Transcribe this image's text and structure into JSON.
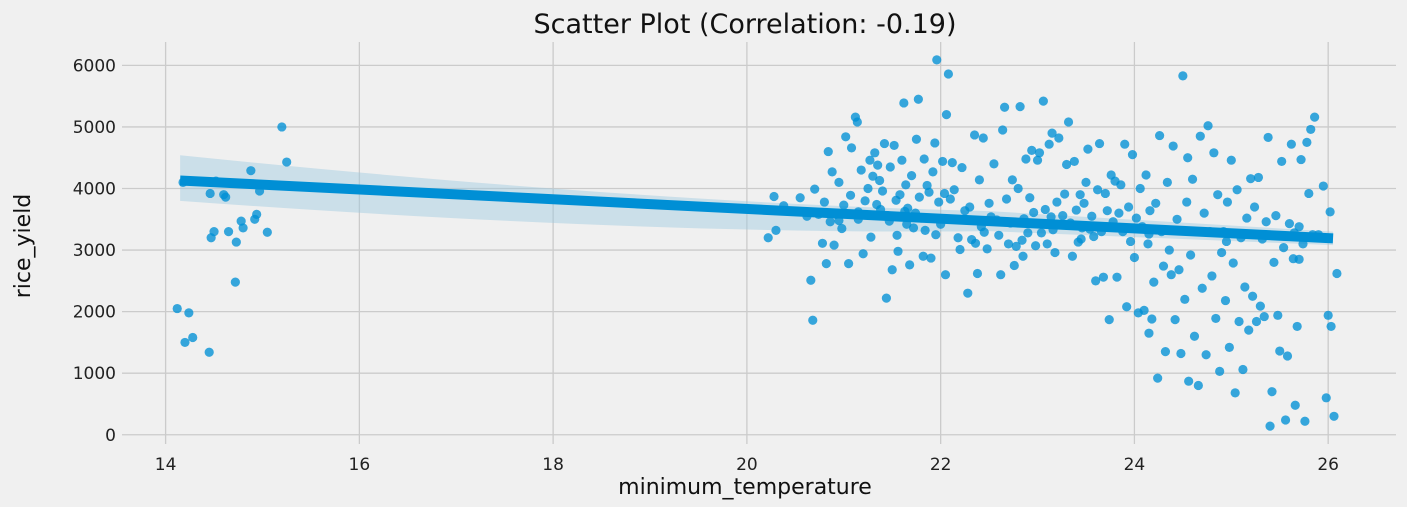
{
  "chart_data": {
    "type": "scatter",
    "title": "Scatter Plot (Correlation: -0.19)",
    "xlabel": "minimum_temperature",
    "ylabel": "rice_yield",
    "xlim": [
      13.55,
      26.7
    ],
    "ylim": [
      -150,
      6380
    ],
    "xticks": [
      14,
      16,
      18,
      20,
      22,
      24,
      26
    ],
    "yticks": [
      0,
      1000,
      2000,
      3000,
      4000,
      5000,
      6000
    ],
    "grid": true,
    "colors": {
      "point": "#008fd5",
      "fit": "#008fd5",
      "band": "#9ecae1",
      "grid": "#cbcbcb",
      "background": "#f0f0f0"
    },
    "regression": {
      "x": [
        14.15,
        26.05
      ],
      "y": [
        4130,
        3190
      ],
      "ci_upper": [
        4540,
        3300
      ],
      "ci_lower": [
        3800,
        3080
      ]
    },
    "points": [
      [
        14.12,
        2050
      ],
      [
        14.18,
        4100
      ],
      [
        14.2,
        1500
      ],
      [
        14.24,
        1980
      ],
      [
        14.28,
        1580
      ],
      [
        14.45,
        1340
      ],
      [
        14.46,
        3920
      ],
      [
        14.47,
        3200
      ],
      [
        14.5,
        3300
      ],
      [
        14.52,
        4120
      ],
      [
        14.6,
        3900
      ],
      [
        14.62,
        3860
      ],
      [
        14.65,
        3300
      ],
      [
        14.72,
        2480
      ],
      [
        14.73,
        3130
      ],
      [
        14.78,
        3470
      ],
      [
        14.8,
        3360
      ],
      [
        14.88,
        4290
      ],
      [
        14.92,
        3500
      ],
      [
        14.94,
        3580
      ],
      [
        14.97,
        3960
      ],
      [
        15.05,
        3290
      ],
      [
        15.2,
        5000
      ],
      [
        15.25,
        4430
      ],
      [
        20.22,
        3200
      ],
      [
        20.28,
        3870
      ],
      [
        20.3,
        3320
      ],
      [
        20.38,
        3720
      ],
      [
        20.55,
        3850
      ],
      [
        20.62,
        3550
      ],
      [
        20.66,
        2510
      ],
      [
        20.68,
        1860
      ],
      [
        20.7,
        3990
      ],
      [
        20.74,
        3580
      ],
      [
        20.78,
        3110
      ],
      [
        20.8,
        3780
      ],
      [
        20.82,
        2780
      ],
      [
        20.84,
        4600
      ],
      [
        20.86,
        3460
      ],
      [
        20.88,
        4270
      ],
      [
        20.9,
        3080
      ],
      [
        20.92,
        3580
      ],
      [
        20.95,
        4100
      ],
      [
        20.98,
        3350
      ],
      [
        21.0,
        3730
      ],
      [
        21.02,
        4840
      ],
      [
        21.05,
        2780
      ],
      [
        21.07,
        3890
      ],
      [
        21.08,
        4660
      ],
      [
        21.12,
        5160
      ],
      [
        21.14,
        5080
      ],
      [
        21.15,
        3500
      ],
      [
        21.18,
        4300
      ],
      [
        21.2,
        2940
      ],
      [
        21.22,
        3800
      ],
      [
        21.25,
        4000
      ],
      [
        21.27,
        4460
      ],
      [
        21.28,
        3210
      ],
      [
        21.3,
        4200
      ],
      [
        21.32,
        4580
      ],
      [
        21.34,
        3740
      ],
      [
        21.35,
        4380
      ],
      [
        21.37,
        4130
      ],
      [
        21.38,
        3660
      ],
      [
        21.4,
        3960
      ],
      [
        21.42,
        4730
      ],
      [
        21.44,
        2220
      ],
      [
        21.45,
        3560
      ],
      [
        21.47,
        3470
      ],
      [
        21.48,
        4350
      ],
      [
        21.5,
        2680
      ],
      [
        21.52,
        4700
      ],
      [
        21.54,
        3810
      ],
      [
        21.55,
        3240
      ],
      [
        21.56,
        2980
      ],
      [
        21.58,
        3900
      ],
      [
        21.6,
        4460
      ],
      [
        21.62,
        5390
      ],
      [
        21.63,
        3630
      ],
      [
        21.64,
        4060
      ],
      [
        21.66,
        3680
      ],
      [
        21.68,
        2760
      ],
      [
        21.7,
        4210
      ],
      [
        21.72,
        3360
      ],
      [
        21.74,
        3600
      ],
      [
        21.75,
        4800
      ],
      [
        21.77,
        5450
      ],
      [
        21.78,
        3860
      ],
      [
        21.8,
        3520
      ],
      [
        21.82,
        2900
      ],
      [
        21.83,
        4480
      ],
      [
        21.84,
        3320
      ],
      [
        21.86,
        4050
      ],
      [
        21.88,
        3940
      ],
      [
        21.9,
        2870
      ],
      [
        21.92,
        4270
      ],
      [
        21.94,
        4740
      ],
      [
        21.95,
        3250
      ],
      [
        21.96,
        6090
      ],
      [
        21.98,
        3780
      ],
      [
        22.0,
        3420
      ],
      [
        22.02,
        4440
      ],
      [
        22.04,
        3920
      ],
      [
        22.05,
        2600
      ],
      [
        22.06,
        5200
      ],
      [
        22.08,
        5860
      ],
      [
        22.1,
        3830
      ],
      [
        22.12,
        4420
      ],
      [
        22.14,
        3980
      ],
      [
        22.16,
        3500
      ],
      [
        22.18,
        3200
      ],
      [
        22.2,
        3010
      ],
      [
        22.22,
        4340
      ],
      [
        22.25,
        3500
      ],
      [
        22.28,
        2300
      ],
      [
        22.3,
        3700
      ],
      [
        22.32,
        3170
      ],
      [
        22.35,
        4870
      ],
      [
        22.36,
        3110
      ],
      [
        22.38,
        2620
      ],
      [
        22.4,
        4140
      ],
      [
        22.42,
        3380
      ],
      [
        22.44,
        4820
      ],
      [
        22.45,
        3290
      ],
      [
        22.48,
        3020
      ],
      [
        22.5,
        3760
      ],
      [
        22.52,
        3540
      ],
      [
        22.55,
        4400
      ],
      [
        22.58,
        3490
      ],
      [
        22.6,
        3240
      ],
      [
        22.62,
        2600
      ],
      [
        22.64,
        4950
      ],
      [
        22.66,
        5320
      ],
      [
        22.68,
        3830
      ],
      [
        22.7,
        3100
      ],
      [
        22.72,
        3440
      ],
      [
        22.74,
        4140
      ],
      [
        22.76,
        2750
      ],
      [
        22.78,
        3060
      ],
      [
        22.8,
        4000
      ],
      [
        22.82,
        5330
      ],
      [
        22.84,
        3160
      ],
      [
        22.86,
        3510
      ],
      [
        22.88,
        4480
      ],
      [
        22.9,
        3280
      ],
      [
        22.92,
        3850
      ],
      [
        22.94,
        4620
      ],
      [
        22.96,
        3610
      ],
      [
        22.98,
        3070
      ],
      [
        23.0,
        4460
      ],
      [
        23.02,
        4580
      ],
      [
        23.04,
        3280
      ],
      [
        23.06,
        5420
      ],
      [
        23.08,
        3660
      ],
      [
        23.1,
        3100
      ],
      [
        23.12,
        4720
      ],
      [
        23.14,
        3540
      ],
      [
        23.15,
        4900
      ],
      [
        23.16,
        3330
      ],
      [
        23.18,
        2960
      ],
      [
        23.2,
        3780
      ],
      [
        23.22,
        4820
      ],
      [
        23.24,
        3420
      ],
      [
        23.26,
        3560
      ],
      [
        23.28,
        3910
      ],
      [
        23.3,
        4390
      ],
      [
        23.32,
        5080
      ],
      [
        23.34,
        3440
      ],
      [
        23.36,
        2900
      ],
      [
        23.38,
        4440
      ],
      [
        23.4,
        3650
      ],
      [
        23.42,
        3130
      ],
      [
        23.44,
        3900
      ],
      [
        23.46,
        3360
      ],
      [
        23.48,
        3760
      ],
      [
        23.5,
        4100
      ],
      [
        23.52,
        4640
      ],
      [
        23.54,
        3340
      ],
      [
        23.56,
        3550
      ],
      [
        23.58,
        3220
      ],
      [
        23.6,
        2500
      ],
      [
        23.62,
        3980
      ],
      [
        23.64,
        4730
      ],
      [
        23.66,
        3300
      ],
      [
        23.68,
        2560
      ],
      [
        23.7,
        3920
      ],
      [
        23.72,
        3640
      ],
      [
        23.74,
        1870
      ],
      [
        23.76,
        4220
      ],
      [
        23.78,
        3460
      ],
      [
        23.8,
        4120
      ],
      [
        23.82,
        2560
      ],
      [
        23.84,
        3600
      ],
      [
        23.86,
        4060
      ],
      [
        23.88,
        3300
      ],
      [
        23.9,
        4720
      ],
      [
        23.92,
        2080
      ],
      [
        23.94,
        3700
      ],
      [
        23.96,
        3140
      ],
      [
        23.98,
        4550
      ],
      [
        24.0,
        2880
      ],
      [
        24.02,
        3520
      ],
      [
        24.04,
        1980
      ],
      [
        24.06,
        4000
      ],
      [
        24.08,
        3380
      ],
      [
        24.1,
        2020
      ],
      [
        24.12,
        4220
      ],
      [
        24.14,
        3100
      ],
      [
        24.15,
        1650
      ],
      [
        24.16,
        3640
      ],
      [
        24.18,
        1880
      ],
      [
        24.2,
        2480
      ],
      [
        24.22,
        3760
      ],
      [
        24.24,
        920
      ],
      [
        24.26,
        4860
      ],
      [
        24.28,
        3300
      ],
      [
        24.3,
        2740
      ],
      [
        24.32,
        1350
      ],
      [
        24.34,
        4100
      ],
      [
        24.36,
        3000
      ],
      [
        24.38,
        2600
      ],
      [
        24.4,
        4690
      ],
      [
        24.42,
        1870
      ],
      [
        24.44,
        3500
      ],
      [
        24.46,
        2680
      ],
      [
        24.48,
        1320
      ],
      [
        24.5,
        5830
      ],
      [
        24.52,
        2200
      ],
      [
        24.54,
        3780
      ],
      [
        24.56,
        870
      ],
      [
        24.58,
        2920
      ],
      [
        24.6,
        4150
      ],
      [
        24.62,
        1600
      ],
      [
        24.64,
        3300
      ],
      [
        24.66,
        800
      ],
      [
        24.68,
        4850
      ],
      [
        24.7,
        2380
      ],
      [
        24.72,
        3600
      ],
      [
        24.74,
        1300
      ],
      [
        24.76,
        5020
      ],
      [
        24.78,
        3300
      ],
      [
        24.8,
        2580
      ],
      [
        24.82,
        4580
      ],
      [
        24.84,
        1890
      ],
      [
        24.86,
        3900
      ],
      [
        24.88,
        1030
      ],
      [
        24.9,
        2960
      ],
      [
        24.92,
        3300
      ],
      [
        24.94,
        2180
      ],
      [
        24.96,
        3780
      ],
      [
        24.98,
        1420
      ],
      [
        25.0,
        4460
      ],
      [
        25.02,
        2790
      ],
      [
        25.04,
        680
      ],
      [
        25.06,
        3980
      ],
      [
        25.08,
        1840
      ],
      [
        25.1,
        3200
      ],
      [
        25.12,
        1060
      ],
      [
        25.14,
        2400
      ],
      [
        25.16,
        3520
      ],
      [
        25.18,
        1700
      ],
      [
        25.2,
        4160
      ],
      [
        25.22,
        2250
      ],
      [
        25.24,
        3700
      ],
      [
        25.26,
        1840
      ],
      [
        25.28,
        4180
      ],
      [
        25.3,
        2090
      ],
      [
        25.32,
        3180
      ],
      [
        25.34,
        1920
      ],
      [
        25.36,
        3460
      ],
      [
        25.38,
        4830
      ],
      [
        25.4,
        140
      ],
      [
        25.42,
        700
      ],
      [
        25.44,
        2800
      ],
      [
        25.46,
        3560
      ],
      [
        25.48,
        1940
      ],
      [
        25.5,
        1360
      ],
      [
        25.52,
        4440
      ],
      [
        25.54,
        3040
      ],
      [
        25.56,
        240
      ],
      [
        25.58,
        1280
      ],
      [
        25.6,
        3430
      ],
      [
        25.62,
        4720
      ],
      [
        25.64,
        2860
      ],
      [
        25.66,
        480
      ],
      [
        25.68,
        1760
      ],
      [
        25.7,
        3380
      ],
      [
        25.72,
        4470
      ],
      [
        25.74,
        3100
      ],
      [
        25.76,
        220
      ],
      [
        25.78,
        4750
      ],
      [
        25.8,
        3920
      ],
      [
        25.82,
        4960
      ],
      [
        25.84,
        3250
      ],
      [
        25.86,
        5160
      ],
      [
        25.9,
        3250
      ],
      [
        25.95,
        4040
      ],
      [
        25.98,
        600
      ],
      [
        26.0,
        1940
      ],
      [
        26.02,
        3620
      ],
      [
        26.03,
        1760
      ],
      [
        26.06,
        300
      ],
      [
        26.09,
        2620
      ],
      [
        25.65,
        3280
      ],
      [
        25.7,
        2850
      ],
      [
        24.95,
        3140
      ],
      [
        24.55,
        4500
      ],
      [
        24.15,
        3260
      ],
      [
        23.45,
        3180
      ],
      [
        22.85,
        2900
      ],
      [
        22.25,
        3640
      ],
      [
        21.65,
        3420
      ],
      [
        21.15,
        3620
      ],
      [
        20.95,
        3480
      ]
    ]
  }
}
